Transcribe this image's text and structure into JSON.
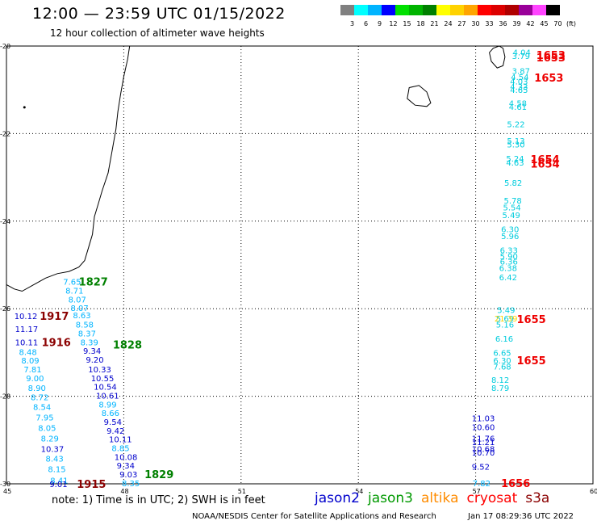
{
  "header": {
    "title": "12:00 — 23:59 UTC 01/15/2022",
    "subtitle": "12 hour collection of altimeter wave heights"
  },
  "color_scale": {
    "unit": "(ft)",
    "bins": [
      {
        "label": "3",
        "color": "#808080"
      },
      {
        "label": "6",
        "color": "#00ffff"
      },
      {
        "label": "9",
        "color": "#00b4ff"
      },
      {
        "label": "12",
        "color": "#0000ff"
      },
      {
        "label": "15",
        "color": "#00e000"
      },
      {
        "label": "18",
        "color": "#00b400"
      },
      {
        "label": "21",
        "color": "#008000"
      },
      {
        "label": "24",
        "color": "#ffff00"
      },
      {
        "label": "27",
        "color": "#ffd200"
      },
      {
        "label": "30",
        "color": "#ffa500"
      },
      {
        "label": "33",
        "color": "#ff0000"
      },
      {
        "label": "36",
        "color": "#dd0000"
      },
      {
        "label": "39",
        "color": "#b00000"
      },
      {
        "label": "42",
        "color": "#990099"
      },
      {
        "label": "45",
        "color": "#ff44ff"
      },
      {
        "label": "70",
        "color": "#000000"
      }
    ]
  },
  "map": {
    "lon_range": [
      45,
      60
    ],
    "lat_range": [
      -30,
      -20
    ],
    "lon_ticks": [
      "45",
      "48",
      "51",
      "54",
      "57",
      "60"
    ],
    "lat_ticks": [
      "-20",
      "-22",
      "-24",
      "-26",
      "-28",
      "-30"
    ],
    "grid": true,
    "observations": [
      {
        "lon": 46.45,
        "lat": -25.38,
        "value": "7.65",
        "color": "#00b4ff"
      },
      {
        "lon": 46.51,
        "lat": -25.58,
        "value": "8.71",
        "color": "#00b4ff"
      },
      {
        "lon": 46.58,
        "lat": -25.78,
        "value": "8.07",
        "color": "#00b4ff"
      },
      {
        "lon": 46.64,
        "lat": -25.98,
        "value": "8.07",
        "color": "#00b4ff"
      },
      {
        "lon": 46.7,
        "lat": -26.14,
        "value": "8.63",
        "color": "#00b4ff"
      },
      {
        "lon": 46.77,
        "lat": -26.36,
        "value": "8.58",
        "color": "#00b4ff"
      },
      {
        "lon": 46.83,
        "lat": -26.56,
        "value": "8.37",
        "color": "#00b4ff"
      },
      {
        "lon": 46.89,
        "lat": -26.76,
        "value": "8.39",
        "color": "#00b4ff"
      },
      {
        "lon": 46.96,
        "lat": -26.96,
        "value": "9.34",
        "color": "#0000cc"
      },
      {
        "lon": 47.03,
        "lat": -27.16,
        "value": "9.20",
        "color": "#0000cc"
      },
      {
        "lon": 47.09,
        "lat": -27.38,
        "value": "10.33",
        "color": "#0000cc"
      },
      {
        "lon": 47.16,
        "lat": -27.58,
        "value": "10.55",
        "color": "#0000cc"
      },
      {
        "lon": 47.23,
        "lat": -27.78,
        "value": "10.54",
        "color": "#0000cc"
      },
      {
        "lon": 47.29,
        "lat": -27.98,
        "value": "10.61",
        "color": "#0000cc"
      },
      {
        "lon": 47.36,
        "lat": -28.18,
        "value": "8.99",
        "color": "#00b4ff"
      },
      {
        "lon": 47.43,
        "lat": -28.38,
        "value": "8.66",
        "color": "#00b4ff"
      },
      {
        "lon": 47.49,
        "lat": -28.58,
        "value": "9.54",
        "color": "#0000cc"
      },
      {
        "lon": 47.56,
        "lat": -28.78,
        "value": "9.42",
        "color": "#0000cc"
      },
      {
        "lon": 47.62,
        "lat": -28.98,
        "value": "10.11",
        "color": "#0000cc"
      },
      {
        "lon": 47.69,
        "lat": -29.18,
        "value": "8.85",
        "color": "#00b4ff"
      },
      {
        "lon": 47.76,
        "lat": -29.38,
        "value": "10.08",
        "color": "#0000cc"
      },
      {
        "lon": 47.82,
        "lat": -29.58,
        "value": "9.34",
        "color": "#0000cc"
      },
      {
        "lon": 47.89,
        "lat": -29.78,
        "value": "9.03",
        "color": "#0000cc"
      },
      {
        "lon": 47.95,
        "lat": -29.98,
        "value": "8.35",
        "color": "#00b4ff"
      },
      {
        "lon": 45.2,
        "lat": -26.16,
        "value": "10.12",
        "color": "#0000cc"
      },
      {
        "lon": 45.22,
        "lat": -26.46,
        "value": "11.17",
        "color": "#0000cc"
      },
      {
        "lon": 45.22,
        "lat": -26.76,
        "value": "10.11",
        "color": "#0000cc"
      },
      {
        "lon": 45.32,
        "lat": -26.98,
        "value": "8.48",
        "color": "#00b4ff"
      },
      {
        "lon": 45.38,
        "lat": -27.18,
        "value": "8.09",
        "color": "#00b4ff"
      },
      {
        "lon": 45.44,
        "lat": -27.38,
        "value": "7.81",
        "color": "#00b4ff"
      },
      {
        "lon": 45.5,
        "lat": -27.58,
        "value": "9.00",
        "color": "#00b4ff"
      },
      {
        "lon": 45.55,
        "lat": -27.8,
        "value": "8.90",
        "color": "#00b4ff"
      },
      {
        "lon": 45.62,
        "lat": -28.02,
        "value": "8.72",
        "color": "#00b4ff"
      },
      {
        "lon": 45.68,
        "lat": -28.24,
        "value": "8.54",
        "color": "#00b4ff"
      },
      {
        "lon": 45.75,
        "lat": -28.48,
        "value": "7.95",
        "color": "#00b4ff"
      },
      {
        "lon": 45.81,
        "lat": -28.72,
        "value": "8.05",
        "color": "#00b4ff"
      },
      {
        "lon": 45.88,
        "lat": -28.96,
        "value": "8.29",
        "color": "#00b4ff"
      },
      {
        "lon": 45.88,
        "lat": -29.2,
        "value": "10.37",
        "color": "#0000cc"
      },
      {
        "lon": 46.0,
        "lat": -29.42,
        "value": "8.43",
        "color": "#00b4ff"
      },
      {
        "lon": 46.06,
        "lat": -29.66,
        "value": "8.15",
        "color": "#00b4ff"
      },
      {
        "lon": 46.12,
        "lat": -29.92,
        "value": "8.41",
        "color": "#00b4ff"
      },
      {
        "lon": 46.1,
        "lat": -30.0,
        "value": "9.01",
        "color": "#0000cc"
      },
      {
        "lon": 57.95,
        "lat": -20.14,
        "value": "4.04",
        "color": "#00ccdd"
      },
      {
        "lon": 57.93,
        "lat": -20.22,
        "value": "3.79",
        "color": "#00ccdd"
      },
      {
        "lon": 57.93,
        "lat": -20.56,
        "value": "3.87",
        "color": "#00ccdd"
      },
      {
        "lon": 57.9,
        "lat": -20.7,
        "value": "4.54",
        "color": "#00ccdd"
      },
      {
        "lon": 57.88,
        "lat": -20.8,
        "value": "4.03",
        "color": "#00ccdd"
      },
      {
        "lon": 57.88,
        "lat": -20.92,
        "value": "4.33",
        "color": "#00ccdd"
      },
      {
        "lon": 57.88,
        "lat": -21.0,
        "value": "4.65",
        "color": "#00ccdd"
      },
      {
        "lon": 57.85,
        "lat": -21.3,
        "value": "4.58",
        "color": "#00ccdd"
      },
      {
        "lon": 57.85,
        "lat": -21.38,
        "value": "4.61",
        "color": "#00ccdd"
      },
      {
        "lon": 57.8,
        "lat": -21.78,
        "value": "5.22",
        "color": "#00ccdd"
      },
      {
        "lon": 57.8,
        "lat": -22.16,
        "value": "5.13",
        "color": "#00ccdd"
      },
      {
        "lon": 57.8,
        "lat": -22.24,
        "value": "5.30",
        "color": "#00ccdd"
      },
      {
        "lon": 57.78,
        "lat": -22.56,
        "value": "5.24",
        "color": "#00ccdd"
      },
      {
        "lon": 57.78,
        "lat": -22.66,
        "value": "4.63",
        "color": "#00ccdd"
      },
      {
        "lon": 57.73,
        "lat": -23.12,
        "value": "5.82",
        "color": "#00ccdd"
      },
      {
        "lon": 57.72,
        "lat": -23.52,
        "value": "5.78",
        "color": "#00ccdd"
      },
      {
        "lon": 57.7,
        "lat": -23.68,
        "value": "5.54",
        "color": "#00ccdd"
      },
      {
        "lon": 57.68,
        "lat": -23.86,
        "value": "5.49",
        "color": "#00ccdd"
      },
      {
        "lon": 57.65,
        "lat": -24.18,
        "value": "6.30",
        "color": "#00ccdd"
      },
      {
        "lon": 57.65,
        "lat": -24.34,
        "value": "5.96",
        "color": "#00ccdd"
      },
      {
        "lon": 57.62,
        "lat": -24.66,
        "value": "6.33",
        "color": "#00ccdd"
      },
      {
        "lon": 57.62,
        "lat": -24.8,
        "value": "5.90",
        "color": "#00ccdd"
      },
      {
        "lon": 57.62,
        "lat": -24.92,
        "value": "6.36",
        "color": "#00ccdd"
      },
      {
        "lon": 57.6,
        "lat": -25.06,
        "value": "6.38",
        "color": "#00ccdd"
      },
      {
        "lon": 57.6,
        "lat": -25.28,
        "value": "6.42",
        "color": "#00ccdd"
      },
      {
        "lon": 57.55,
        "lat": -26.02,
        "value": "5.49",
        "color": "#00ccdd"
      },
      {
        "lon": 57.52,
        "lat": -26.22,
        "value": "5.69",
        "color": "#00ccdd"
      },
      {
        "lon": 57.48,
        "lat": -26.22,
        "value": "21.39",
        "color": "#ffd200"
      },
      {
        "lon": 57.52,
        "lat": -26.36,
        "value": "5.16",
        "color": "#00ccdd"
      },
      {
        "lon": 57.5,
        "lat": -26.68,
        "value": "6.16",
        "color": "#00ccdd"
      },
      {
        "lon": 57.45,
        "lat": -27.0,
        "value": "6.65",
        "color": "#00ccdd"
      },
      {
        "lon": 57.45,
        "lat": -27.18,
        "value": "6.30",
        "color": "#00ccdd"
      },
      {
        "lon": 57.45,
        "lat": -27.32,
        "value": "7.68",
        "color": "#00ccdd"
      },
      {
        "lon": 57.4,
        "lat": -27.62,
        "value": "8.12",
        "color": "#00ccdd"
      },
      {
        "lon": 57.4,
        "lat": -27.8,
        "value": "8.79",
        "color": "#00ccdd"
      },
      {
        "lon": 56.9,
        "lat": -28.5,
        "value": "11.03",
        "color": "#0000cc"
      },
      {
        "lon": 56.9,
        "lat": -28.7,
        "value": "10.60",
        "color": "#0000cc"
      },
      {
        "lon": 56.9,
        "lat": -28.96,
        "value": "11.76",
        "color": "#0000cc"
      },
      {
        "lon": 56.9,
        "lat": -29.04,
        "value": "11.21",
        "color": "#0000cc"
      },
      {
        "lon": 56.9,
        "lat": -29.2,
        "value": "10.68",
        "color": "#0000cc"
      },
      {
        "lon": 56.9,
        "lat": -29.28,
        "value": "10.70",
        "color": "#0000cc"
      },
      {
        "lon": 56.9,
        "lat": -29.6,
        "value": "9.52",
        "color": "#0000cc"
      },
      {
        "lon": 56.92,
        "lat": -29.98,
        "value": "7.82",
        "color": "#00b4ff"
      }
    ],
    "times": [
      {
        "lon": 46.85,
        "lat": -25.38,
        "value": "1827",
        "color": "#008000"
      },
      {
        "lon": 47.72,
        "lat": -26.82,
        "value": "1828",
        "color": "#008000"
      },
      {
        "lon": 48.53,
        "lat": -29.78,
        "value": "1829",
        "color": "#008000"
      },
      {
        "lon": 45.85,
        "lat": -26.16,
        "value": "1917",
        "color": "#8b0000"
      },
      {
        "lon": 45.9,
        "lat": -26.76,
        "value": "1916",
        "color": "#8b0000"
      },
      {
        "lon": 46.8,
        "lat": -30.0,
        "value": "1915",
        "color": "#8b0000"
      },
      {
        "lon": 58.55,
        "lat": -20.2,
        "value": "1653",
        "color": "#ee0000"
      },
      {
        "lon": 58.55,
        "lat": -20.26,
        "value": "1653",
        "color": "#ee0000"
      },
      {
        "lon": 58.5,
        "lat": -20.72,
        "value": "1653",
        "color": "#ee0000"
      },
      {
        "lon": 58.4,
        "lat": -22.58,
        "value": "1654",
        "color": "#ee0000"
      },
      {
        "lon": 58.4,
        "lat": -22.68,
        "value": "1654",
        "color": "#ee0000"
      },
      {
        "lon": 58.05,
        "lat": -26.24,
        "value": "1655",
        "color": "#ee0000"
      },
      {
        "lon": 58.05,
        "lat": -27.18,
        "value": "1655",
        "color": "#ee0000"
      },
      {
        "lon": 57.65,
        "lat": -29.98,
        "value": "1656",
        "color": "#ee0000"
      }
    ]
  },
  "footer": {
    "note": "note:  1) Time is in UTC; 2) SWH is in feet",
    "satellites": [
      {
        "name": "jason2",
        "color": "#0000cc"
      },
      {
        "name": "jason3",
        "color": "#009900"
      },
      {
        "name": "altika",
        "color": "#ff8c00"
      },
      {
        "name": "cryosat",
        "color": "#ff0000"
      },
      {
        "name": "s3a",
        "color": "#8b0000"
      }
    ],
    "credit": "NOAA/NESDIS Center for Satellite Applications and Research",
    "timestamp": "Jan 17 08:29:36 UTC 2022"
  }
}
